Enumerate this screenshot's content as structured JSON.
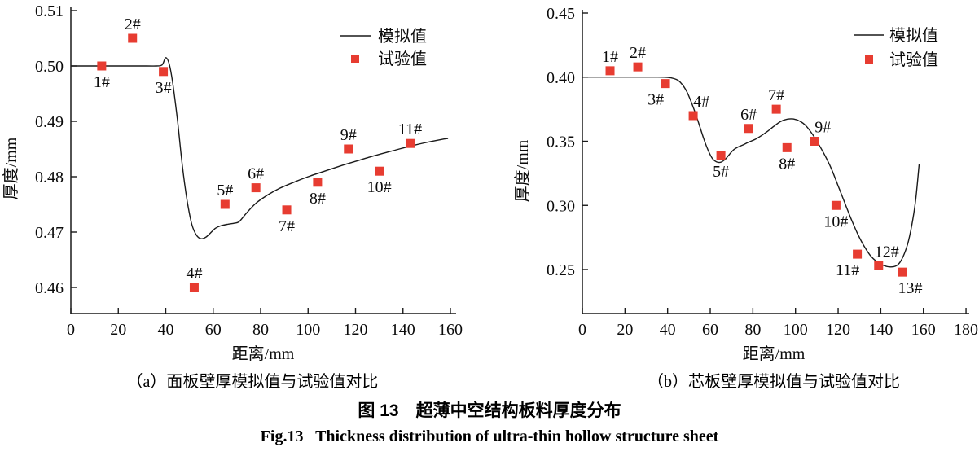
{
  "figure": {
    "title_cn": "图 13　超薄中空结构板料厚度分布",
    "title_en": "Fig.13   Thickness distribution of ultra-thin hollow structure sheet"
  },
  "colors": {
    "experiment_marker": "#e73c31",
    "sim_line": "#1a1a1a",
    "axis": "#1a1a1a",
    "text": "#0b0b0b"
  },
  "legend": {
    "sim_label": "模拟值",
    "exp_label": "试验值",
    "position": "top-right"
  },
  "chart_data": [
    {
      "id": "a",
      "type": "line+scatter",
      "caption": "（a）面板壁厚模拟值与试验值对比",
      "xlabel": "距离/mm",
      "ylabel": "厚度/mm",
      "xlim": [
        0,
        160
      ],
      "ylim": [
        0.46,
        0.51
      ],
      "xticks": [
        0,
        20,
        40,
        60,
        80,
        100,
        120,
        140,
        160
      ],
      "yticks": [
        0.51,
        0.5,
        0.49,
        0.48,
        0.47,
        0.46
      ],
      "grid": false,
      "series": [
        {
          "name": "模拟值",
          "kind": "line",
          "points": [
            [
              0,
              0.5
            ],
            [
              20,
              0.5
            ],
            [
              32,
              0.5
            ],
            [
              36,
              0.5
            ],
            [
              38.5,
              0.5002
            ],
            [
              40,
              0.5015
            ],
            [
              41.5,
              0.5003
            ],
            [
              43,
              0.4968
            ],
            [
              45,
              0.49
            ],
            [
              47,
              0.482
            ],
            [
              49,
              0.4757
            ],
            [
              51,
              0.4714
            ],
            [
              53,
              0.4694
            ],
            [
              55,
              0.4688
            ],
            [
              57,
              0.4691
            ],
            [
              59,
              0.4699
            ],
            [
              61,
              0.4707
            ],
            [
              63,
              0.4711
            ],
            [
              66,
              0.4714
            ],
            [
              69,
              0.4716
            ],
            [
              71,
              0.4719
            ],
            [
              74,
              0.4734
            ],
            [
              78,
              0.4752
            ],
            [
              83,
              0.4767
            ],
            [
              88,
              0.4779
            ],
            [
              94,
              0.479
            ],
            [
              100,
              0.48
            ],
            [
              107,
              0.481
            ],
            [
              114,
              0.482
            ],
            [
              121,
              0.4829
            ],
            [
              128,
              0.4838
            ],
            [
              135,
              0.4846
            ],
            [
              142,
              0.4854
            ],
            [
              149,
              0.4861
            ],
            [
              156,
              0.4867
            ],
            [
              159,
              0.4869
            ]
          ]
        },
        {
          "name": "试验值",
          "kind": "scatter",
          "points": [
            {
              "label": "1#",
              "x": 13,
              "y": 0.5,
              "pos": "b"
            },
            {
              "label": "2#",
              "x": 26,
              "y": 0.505,
              "pos": "a"
            },
            {
              "label": "3#",
              "x": 39,
              "y": 0.499,
              "pos": "b"
            },
            {
              "label": "4#",
              "x": 52,
              "y": 0.46,
              "pos": "a"
            },
            {
              "label": "5#",
              "x": 65,
              "y": 0.475,
              "pos": "a"
            },
            {
              "label": "6#",
              "x": 78,
              "y": 0.478,
              "pos": "a"
            },
            {
              "label": "7#",
              "x": 91,
              "y": 0.474,
              "pos": "b"
            },
            {
              "label": "8#",
              "x": 104,
              "y": 0.479,
              "pos": "b"
            },
            {
              "label": "9#",
              "x": 117,
              "y": 0.485,
              "pos": "a"
            },
            {
              "label": "10#",
              "x": 130,
              "y": 0.481,
              "pos": "b"
            },
            {
              "label": "11#",
              "x": 143,
              "y": 0.486,
              "pos": "a"
            }
          ]
        }
      ]
    },
    {
      "id": "b",
      "type": "line+scatter",
      "caption": "（b）芯板壁厚模拟值与试验值对比",
      "xlabel": "距离/mm",
      "ylabel": "厚度/mm",
      "xlim": [
        0,
        180
      ],
      "ylim": [
        0.25,
        0.45
      ],
      "xticks": [
        0,
        20,
        40,
        60,
        80,
        100,
        120,
        140,
        160,
        180
      ],
      "yticks": [
        0.45,
        0.4,
        0.35,
        0.3,
        0.25
      ],
      "grid": false,
      "series": [
        {
          "name": "模拟值",
          "kind": "line",
          "points": [
            [
              0,
              0.4
            ],
            [
              20,
              0.4
            ],
            [
              35,
              0.4
            ],
            [
              40,
              0.3998
            ],
            [
              43,
              0.3989
            ],
            [
              45,
              0.3974
            ],
            [
              47,
              0.394
            ],
            [
              49,
              0.3888
            ],
            [
              51,
              0.381
            ],
            [
              53,
              0.372
            ],
            [
              55,
              0.362
            ],
            [
              57,
              0.3517
            ],
            [
              59,
              0.343
            ],
            [
              61,
              0.3366
            ],
            [
              63,
              0.3339
            ],
            [
              65,
              0.3337
            ],
            [
              67,
              0.3359
            ],
            [
              69,
              0.3398
            ],
            [
              71,
              0.3434
            ],
            [
              73,
              0.3455
            ],
            [
              75,
              0.3469
            ],
            [
              78,
              0.3493
            ],
            [
              81,
              0.3514
            ],
            [
              84,
              0.3544
            ],
            [
              87,
              0.3579
            ],
            [
              90,
              0.3619
            ],
            [
              93,
              0.3654
            ],
            [
              96,
              0.3672
            ],
            [
              99,
              0.3674
            ],
            [
              102,
              0.3657
            ],
            [
              105,
              0.3619
            ],
            [
              108,
              0.3554
            ],
            [
              111,
              0.3473
            ],
            [
              114,
              0.3384
            ],
            [
              117,
              0.3279
            ],
            [
              120,
              0.3153
            ],
            [
              123,
              0.3025
            ],
            [
              126,
              0.2899
            ],
            [
              129,
              0.2784
            ],
            [
              132,
              0.2688
            ],
            [
              135,
              0.2612
            ],
            [
              138,
              0.2563
            ],
            [
              141,
              0.2534
            ],
            [
              144,
              0.2521
            ],
            [
              147,
              0.2527
            ],
            [
              149,
              0.2556
            ],
            [
              151,
              0.2621
            ],
            [
              153,
              0.2723
            ],
            [
              155,
              0.2886
            ],
            [
              156.5,
              0.3063
            ],
            [
              158,
              0.332
            ]
          ]
        },
        {
          "name": "试验值",
          "kind": "scatter",
          "points": [
            {
              "label": "1#",
              "x": 13,
              "y": 0.405,
              "pos": "a"
            },
            {
              "label": "2#",
              "x": 26,
              "y": 0.408,
              "pos": "a"
            },
            {
              "label": "3#",
              "x": 39,
              "y": 0.395,
              "pos": "bl"
            },
            {
              "label": "4#",
              "x": 52,
              "y": 0.37,
              "pos": "ar"
            },
            {
              "label": "5#",
              "x": 65,
              "y": 0.339,
              "pos": "b"
            },
            {
              "label": "6#",
              "x": 78,
              "y": 0.36,
              "pos": "a"
            },
            {
              "label": "7#",
              "x": 91,
              "y": 0.375,
              "pos": "a"
            },
            {
              "label": "8#",
              "x": 96,
              "y": 0.345,
              "pos": "b"
            },
            {
              "label": "9#",
              "x": 109,
              "y": 0.35,
              "pos": "ar"
            },
            {
              "label": "10#",
              "x": 119,
              "y": 0.3,
              "pos": "b"
            },
            {
              "label": "11#",
              "x": 129,
              "y": 0.262,
              "pos": "bl"
            },
            {
              "label": "12#",
              "x": 139,
              "y": 0.253,
              "pos": "ar"
            },
            {
              "label": "13#",
              "x": 150,
              "y": 0.248,
              "pos": "br"
            }
          ]
        }
      ]
    }
  ]
}
